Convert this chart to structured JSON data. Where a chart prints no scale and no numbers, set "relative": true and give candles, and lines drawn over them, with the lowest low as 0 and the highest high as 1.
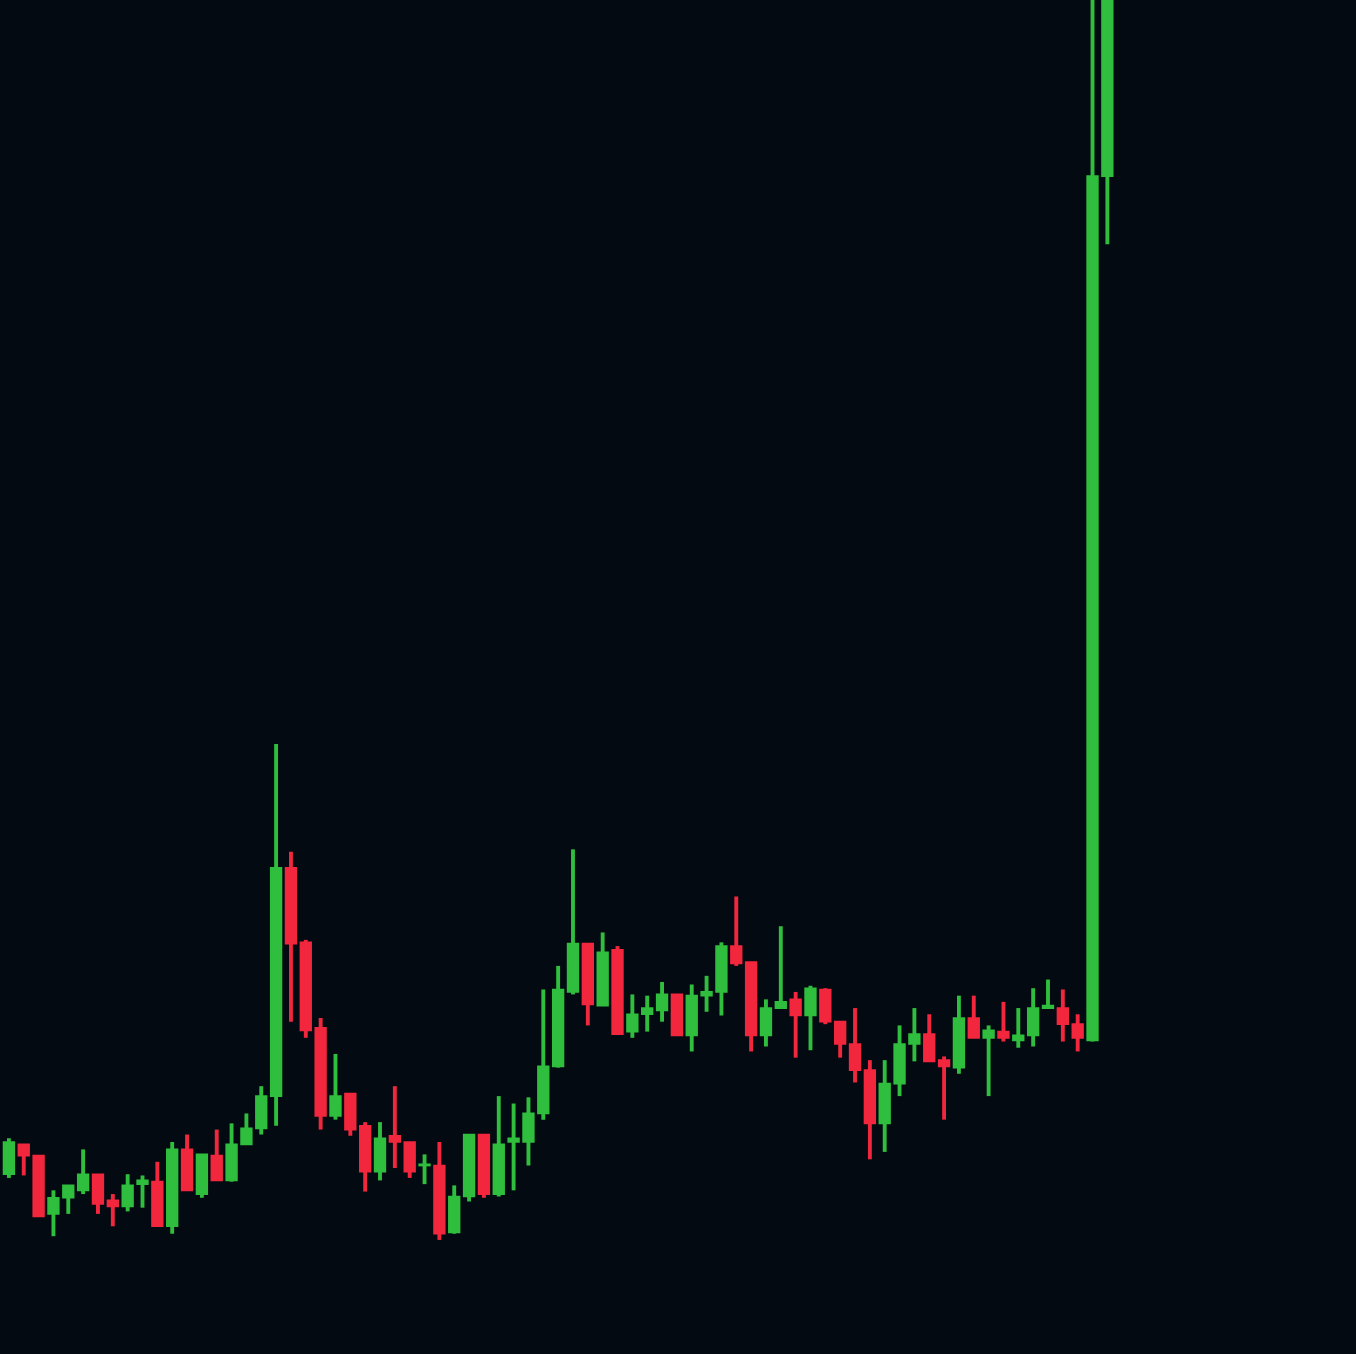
{
  "chart_data": {
    "type": "candlestick",
    "relative": true,
    "categories": [
      null,
      null,
      null,
      null,
      null,
      null,
      null,
      null,
      null,
      null,
      null,
      null,
      null,
      null,
      null,
      null,
      null,
      null,
      null,
      null,
      null,
      null,
      null,
      null,
      null,
      null,
      null,
      null,
      null,
      null,
      null,
      null,
      null,
      null,
      null,
      null,
      null,
      null,
      null,
      null,
      null,
      null,
      null,
      null,
      null,
      null,
      null,
      null,
      null,
      null,
      null,
      null,
      null,
      null,
      null,
      null,
      null,
      null,
      null,
      null,
      null,
      null,
      null,
      null,
      null,
      null,
      null,
      null,
      null,
      null,
      null,
      null,
      null,
      null,
      null
    ],
    "ohlc": [
      [
        0.053,
        0.082,
        0.05,
        0.079
      ],
      [
        0.077,
        0.077,
        0.052,
        0.068
      ],
      [
        0.068,
        0.068,
        0.019,
        0.019
      ],
      [
        0.021,
        0.04,
        0.003,
        0.034
      ],
      [
        0.034,
        0.044,
        0.021,
        0.044
      ],
      [
        0.04,
        0.073,
        0.037,
        0.053
      ],
      [
        0.053,
        0.053,
        0.021,
        0.029
      ],
      [
        0.032,
        0.037,
        0.011,
        0.027
      ],
      [
        0.027,
        0.053,
        0.023,
        0.044
      ],
      [
        0.045,
        0.052,
        0.026,
        0.048
      ],
      [
        0.047,
        0.063,
        0.011,
        0.011
      ],
      [
        0.011,
        0.079,
        0.005,
        0.073
      ],
      [
        0.073,
        0.085,
        0.04,
        0.04
      ],
      [
        0.037,
        0.069,
        0.034,
        0.069
      ],
      [
        0.068,
        0.089,
        0.048,
        0.048
      ],
      [
        0.048,
        0.094,
        0.047,
        0.077
      ],
      [
        0.077,
        0.102,
        0.077,
        0.09
      ],
      [
        0.09,
        0.124,
        0.085,
        0.116
      ],
      [
        0.116,
        0.4,
        0.092,
        0.3
      ],
      [
        0.3,
        0.313,
        0.176,
        0.239
      ],
      [
        0.24,
        0.242,
        0.163,
        0.169
      ],
      [
        0.171,
        0.179,
        0.089,
        0.1
      ],
      [
        0.1,
        0.15,
        0.097,
        0.116
      ],
      [
        0.118,
        0.118,
        0.084,
        0.089
      ],
      [
        0.092,
        0.095,
        0.039,
        0.055
      ],
      [
        0.055,
        0.095,
        0.048,
        0.082
      ],
      [
        0.084,
        0.124,
        0.058,
        0.079
      ],
      [
        0.079,
        0.079,
        0.05,
        0.055
      ],
      [
        0.06,
        0.069,
        0.045,
        0.061
      ],
      [
        0.06,
        0.079,
        0,
        0.005
      ],
      [
        0.006,
        0.044,
        0.005,
        0.035
      ],
      [
        0.035,
        0.085,
        0.031,
        0.085
      ],
      [
        0.085,
        0.085,
        0.034,
        0.037
      ],
      [
        0.037,
        0.116,
        0.035,
        0.077
      ],
      [
        0.079,
        0.11,
        0.04,
        0.082
      ],
      [
        0.079,
        0.115,
        0.06,
        0.102
      ],
      [
        0.102,
        0.202,
        0.097,
        0.14
      ],
      [
        0.14,
        0.221,
        0.139,
        0.202
      ],
      [
        0.2,
        0.315,
        0.198,
        0.239
      ],
      [
        0.239,
        0.239,
        0.173,
        0.19
      ],
      [
        0.189,
        0.248,
        0.189,
        0.232
      ],
      [
        0.234,
        0.237,
        0.166,
        0.166
      ],
      [
        0.168,
        0.198,
        0.163,
        0.182
      ],
      [
        0.182,
        0.197,
        0.168,
        0.187
      ],
      [
        0.185,
        0.208,
        0.176,
        0.198
      ],
      [
        0.198,
        0.198,
        0.165,
        0.165
      ],
      [
        0.165,
        0.206,
        0.152,
        0.197
      ],
      [
        0.197,
        0.213,
        0.184,
        0.2
      ],
      [
        0.2,
        0.24,
        0.181,
        0.237
      ],
      [
        0.237,
        0.277,
        0.221,
        0.223
      ],
      [
        0.224,
        0.224,
        0.152,
        0.165
      ],
      [
        0.165,
        0.194,
        0.156,
        0.187
      ],
      [
        0.187,
        0.253,
        0.187,
        0.192
      ],
      [
        0.194,
        0.2,
        0.147,
        0.181
      ],
      [
        0.181,
        0.205,
        0.153,
        0.203
      ],
      [
        0.202,
        0.203,
        0.174,
        0.176
      ],
      [
        0.176,
        0.176,
        0.147,
        0.158
      ],
      [
        0.158,
        0.187,
        0.127,
        0.137
      ],
      [
        0.137,
        0.145,
        0.065,
        0.094
      ],
      [
        0.094,
        0.145,
        0.071,
        0.126
      ],
      [
        0.126,
        0.173,
        0.116,
        0.158
      ],
      [
        0.158,
        0.187,
        0.144,
        0.166
      ],
      [
        0.166,
        0.182,
        0.144,
        0.144
      ],
      [
        0.145,
        0.148,
        0.097,
        0.14
      ],
      [
        0.139,
        0.197,
        0.134,
        0.179
      ],
      [
        0.179,
        0.197,
        0.163,
        0.163
      ],
      [
        0.163,
        0.173,
        0.116,
        0.169
      ],
      [
        0.168,
        0.192,
        0.16,
        0.163
      ],
      [
        0.161,
        0.187,
        0.155,
        0.165
      ],
      [
        0.165,
        0.203,
        0.156,
        0.187
      ],
      [
        0.187,
        0.21,
        0.187,
        0.189
      ],
      [
        0.187,
        0.202,
        0.16,
        0.174
      ],
      [
        0.174,
        0.182,
        0.152,
        0.163
      ],
      [
        0.161,
        1,
        0.16,
        0.858
      ],
      [
        0.858,
        1,
        0.803,
        1
      ]
    ],
    "colors": [
      "#2fbe3d",
      "#f2273d",
      "#f2273d",
      "#2fbe3d",
      "#2fbe3d",
      "#2fbe3d",
      "#f2273d",
      "#f2273d",
      "#2fbe3d",
      "#2fbe3d",
      "#f2273d",
      "#2fbe3d",
      "#f2273d",
      "#2fbe3d",
      "#f2273d",
      "#2fbe3d",
      "#2fbe3d",
      "#2fbe3d",
      "#2fbe3d",
      "#f2273d",
      "#f2273d",
      "#f2273d",
      "#2fbe3d",
      "#f2273d",
      "#f2273d",
      "#2fbe3d",
      "#f2273d",
      "#f2273d",
      "#2fbe3d",
      "#f2273d",
      "#2fbe3d",
      "#2fbe3d",
      "#f2273d",
      "#2fbe3d",
      "#2fbe3d",
      "#2fbe3d",
      "#2fbe3d",
      "#2fbe3d",
      "#2fbe3d",
      "#f2273d",
      "#2fbe3d",
      "#f2273d",
      "#2fbe3d",
      "#2fbe3d",
      "#2fbe3d",
      "#f2273d",
      "#2fbe3d",
      "#2fbe3d",
      "#2fbe3d",
      "#f2273d",
      "#f2273d",
      "#2fbe3d",
      "#2fbe3d",
      "#f2273d",
      "#2fbe3d",
      "#f2273d",
      "#f2273d",
      "#f2273d",
      "#f2273d",
      "#2fbe3d",
      "#2fbe3d",
      "#2fbe3d",
      "#f2273d",
      "#f2273d",
      "#2fbe3d",
      "#f2273d",
      "#2fbe3d",
      "#f2273d",
      "#2fbe3d",
      "#2fbe3d",
      "#2fbe3d",
      "#f2273d",
      "#f2273d",
      "#2fbe3d",
      "#2fbe3d"
    ]
  }
}
